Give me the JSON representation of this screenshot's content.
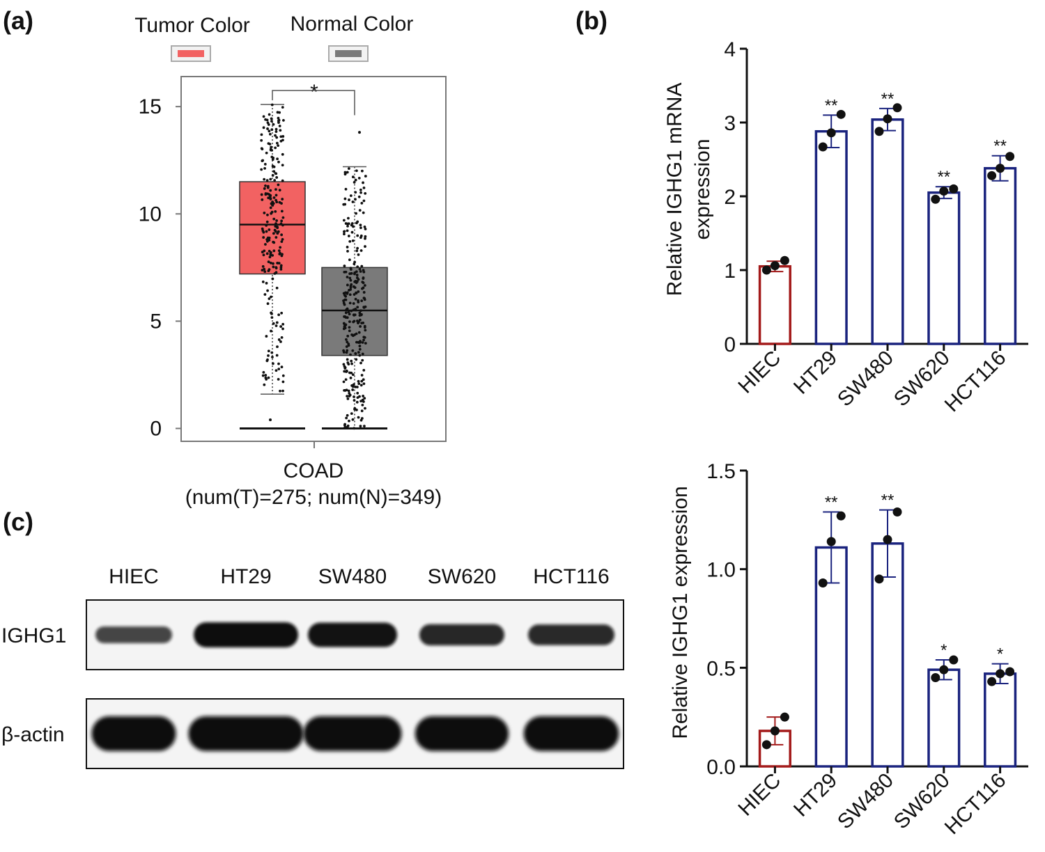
{
  "panels": {
    "a": "(a)",
    "b": "(b)",
    "c": "(c)"
  },
  "colors": {
    "tumor": "#f26262",
    "normal": "#7a7a7a",
    "hiec_bar": "#a31a1a",
    "cell_bar": "#1a237e",
    "significance_red": "#e82020"
  },
  "chart_data": [
    {
      "id": "boxplot",
      "type": "box",
      "title": "",
      "legend": [
        {
          "name": "Tumor Color",
          "color": "#f26262"
        },
        {
          "name": "Normal Color",
          "color": "#7a7a7a"
        }
      ],
      "legend_placement": "top",
      "xlabel": "COAD",
      "xlabel_sub": "(num(T)=275; num(N)=349)",
      "ylim": [
        -0.6,
        16.4
      ],
      "yticks": [
        0,
        5,
        10,
        15
      ],
      "significance": "*",
      "groups": [
        {
          "name": "Tumor",
          "n": 275,
          "q1": 7.2,
          "median": 9.5,
          "q3": 11.5,
          "whisker_low": 1.6,
          "whisker_high": 15.1
        },
        {
          "name": "Normal",
          "n": 349,
          "q1": 3.4,
          "median": 5.5,
          "q3": 7.5,
          "whisker_low": 0,
          "whisker_high": 12.2
        }
      ]
    },
    {
      "id": "mrna",
      "type": "bar",
      "ylabel_line1": "Relative IGHG1 mRNA",
      "ylabel_line2": "expression",
      "ylim": [
        0,
        4
      ],
      "yticks": [
        "0",
        "1",
        "2",
        "3",
        "4"
      ],
      "categories": [
        "HIEC",
        "HT29",
        "SW480",
        "SW620",
        "HCT116"
      ],
      "values": [
        1.05,
        2.88,
        3.04,
        2.05,
        2.38
      ],
      "errors": [
        0.07,
        0.22,
        0.15,
        0.08,
        0.17
      ],
      "points": [
        [
          1.0,
          1.06,
          1.13
        ],
        [
          2.67,
          2.86,
          3.11
        ],
        [
          2.88,
          3.05,
          3.2
        ],
        [
          1.96,
          2.07,
          2.1
        ],
        [
          2.28,
          2.38,
          2.54
        ]
      ],
      "significance": [
        "",
        "**",
        "**",
        "**",
        "**"
      ]
    },
    {
      "id": "protein",
      "type": "bar",
      "ylabel_line1": "Relative IGHG1 expression",
      "ylim": [
        0,
        1.5
      ],
      "yticks": [
        "0.0",
        "0.5",
        "1.0",
        "1.5"
      ],
      "categories": [
        "HIEC",
        "HT29",
        "SW480",
        "SW620",
        "HCT116"
      ],
      "values": [
        0.18,
        1.11,
        1.13,
        0.49,
        0.47
      ],
      "errors": [
        0.07,
        0.18,
        0.17,
        0.05,
        0.05
      ],
      "points": [
        [
          0.11,
          0.18,
          0.25
        ],
        [
          0.93,
          1.14,
          1.27
        ],
        [
          0.95,
          1.15,
          1.29
        ],
        [
          0.45,
          0.49,
          0.54
        ],
        [
          0.43,
          0.47,
          0.48
        ]
      ],
      "significance": [
        "",
        "**",
        "**",
        "*",
        "*"
      ]
    }
  ],
  "blot": {
    "lanes": [
      "HIEC",
      "HT29",
      "SW480",
      "SW620",
      "HCT116"
    ],
    "rows": [
      {
        "label": "IGHG1",
        "intensity": [
          0.45,
          1.0,
          0.95,
          0.75,
          0.72
        ]
      },
      {
        "label": "β-actin",
        "intensity": [
          1.0,
          1.0,
          1.0,
          1.0,
          1.0
        ]
      }
    ]
  }
}
